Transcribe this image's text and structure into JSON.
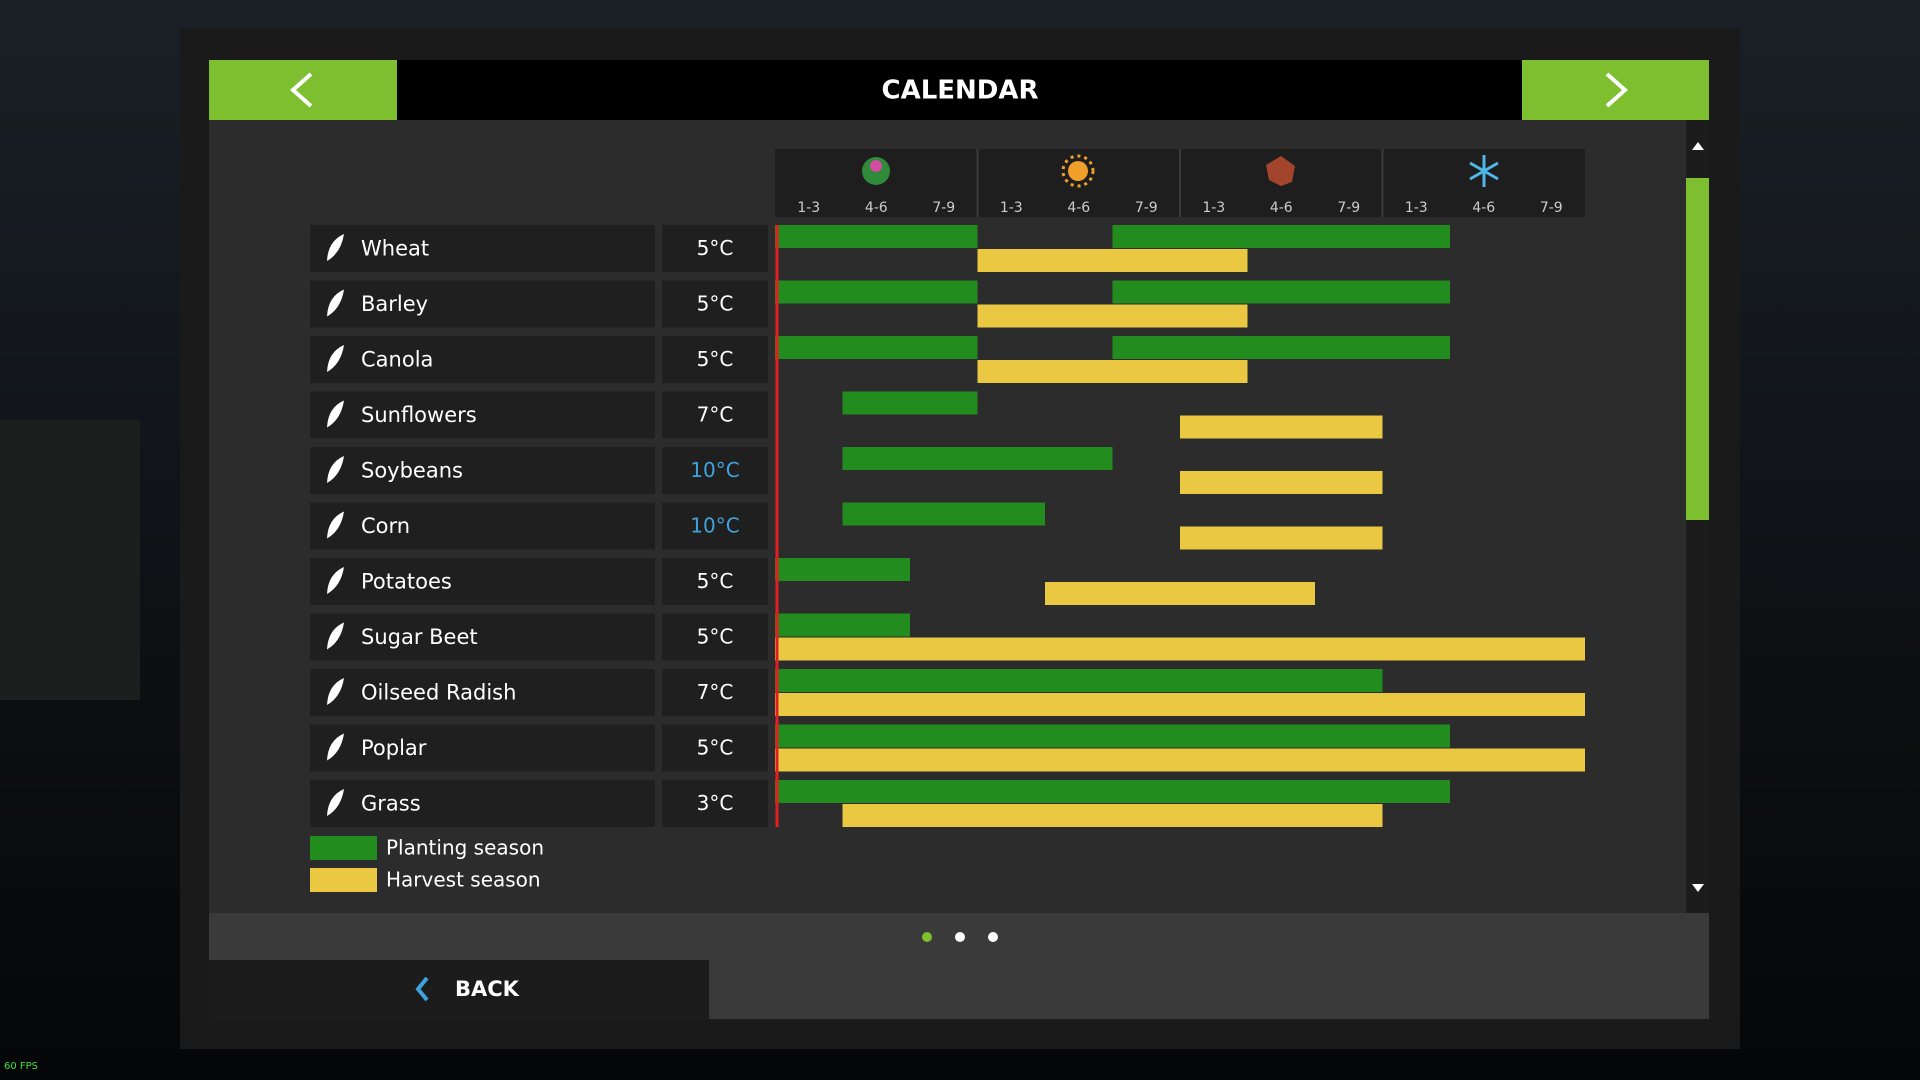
{
  "header": {
    "title": "CALENDAR"
  },
  "chart_data": {
    "type": "gantt",
    "periods": [
      "1-3",
      "4-6",
      "7-9",
      "1-3",
      "4-6",
      "7-9",
      "1-3",
      "4-6",
      "7-9",
      "1-3",
      "4-6",
      "7-9"
    ],
    "xlim": [
      0,
      12
    ],
    "series": [
      {
        "name": "Planting season",
        "color": "#238c1f"
      },
      {
        "name": "Harvest season",
        "color": "#eac842"
      }
    ],
    "crops": [
      {
        "name": "Wheat",
        "temperature": "5°C",
        "planting": [
          [
            0,
            3
          ],
          [
            5,
            10
          ]
        ],
        "harvest": [
          [
            3,
            7
          ]
        ]
      },
      {
        "name": "Barley",
        "temperature": "5°C",
        "planting": [
          [
            0,
            3
          ],
          [
            5,
            10
          ]
        ],
        "harvest": [
          [
            3,
            7
          ]
        ]
      },
      {
        "name": "Canola",
        "temperature": "5°C",
        "planting": [
          [
            0,
            3
          ],
          [
            5,
            10
          ]
        ],
        "harvest": [
          [
            3,
            7
          ]
        ]
      },
      {
        "name": "Sunflowers",
        "temperature": "7°C",
        "planting": [
          [
            1,
            3
          ]
        ],
        "harvest": [
          [
            6,
            9
          ]
        ]
      },
      {
        "name": "Soybeans",
        "temperature": "10°C",
        "temperature_color": "#3fa3dd",
        "planting": [
          [
            1,
            5
          ]
        ],
        "harvest": [
          [
            6,
            9
          ]
        ]
      },
      {
        "name": "Corn",
        "temperature": "10°C",
        "temperature_color": "#3fa3dd",
        "planting": [
          [
            1,
            4
          ]
        ],
        "harvest": [
          [
            6,
            9
          ]
        ]
      },
      {
        "name": "Potatoes",
        "temperature": "5°C",
        "planting": [
          [
            0,
            2
          ]
        ],
        "harvest": [
          [
            4,
            8
          ]
        ]
      },
      {
        "name": "Sugar Beet",
        "temperature": "5°C",
        "planting": [
          [
            0,
            2
          ]
        ],
        "harvest": [
          [
            0,
            12
          ]
        ]
      },
      {
        "name": "Oilseed Radish",
        "temperature": "7°C",
        "planting": [
          [
            0,
            9
          ]
        ],
        "harvest": [
          [
            0,
            12
          ]
        ]
      },
      {
        "name": "Poplar",
        "temperature": "5°C",
        "planting": [
          [
            0,
            10
          ]
        ],
        "harvest": [
          [
            0,
            12
          ]
        ]
      },
      {
        "name": "Grass",
        "temperature": "3°C",
        "planting": [
          [
            0,
            10
          ]
        ],
        "harvest": [
          [
            1,
            9
          ]
        ]
      }
    ]
  },
  "footer": {
    "back": "BACK",
    "fps": "60 FPS"
  }
}
